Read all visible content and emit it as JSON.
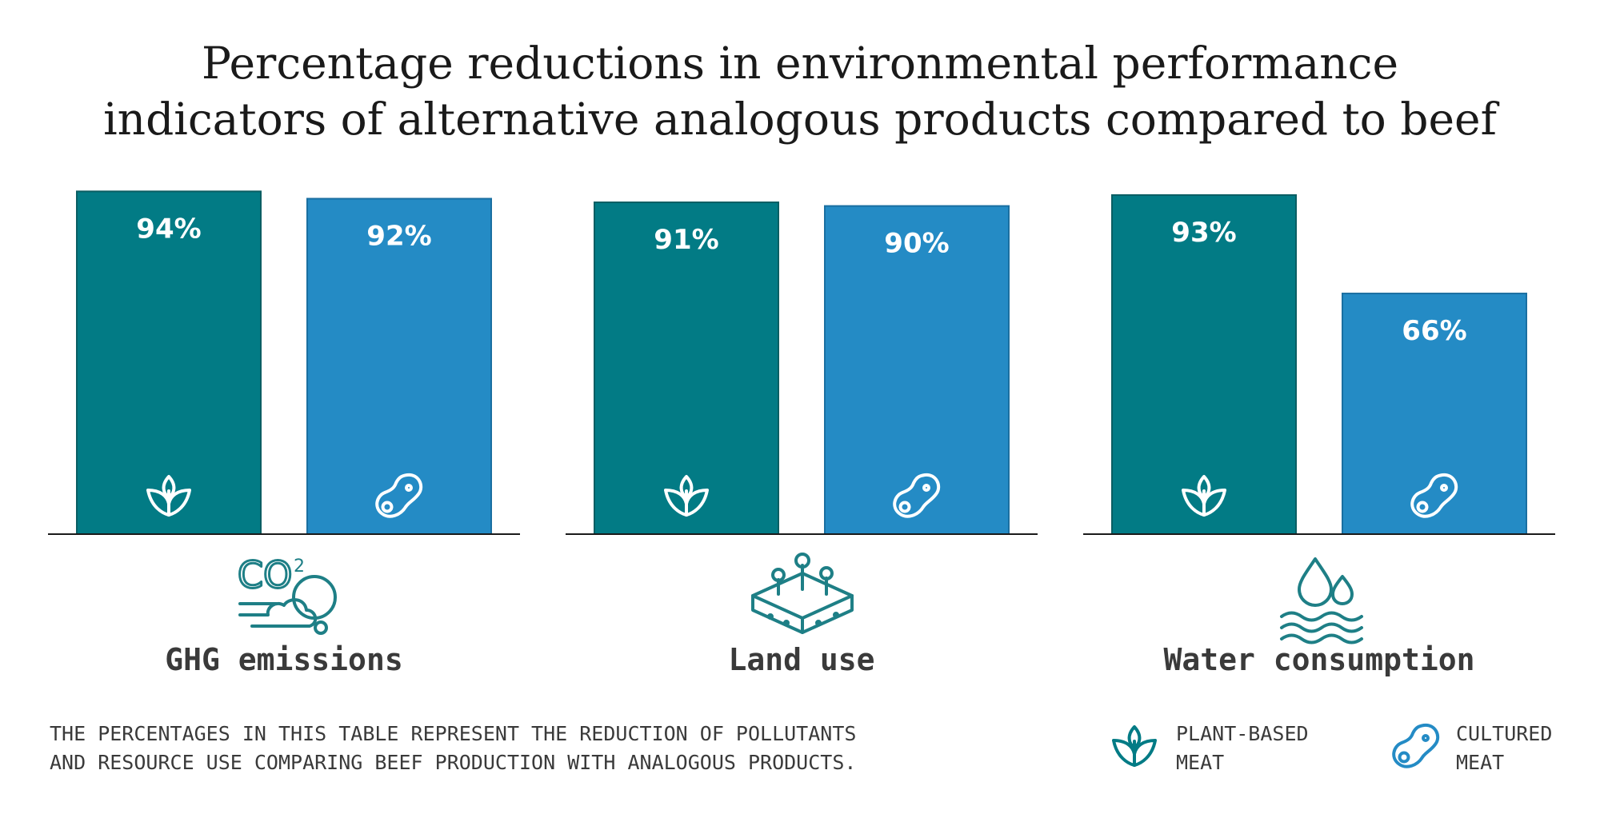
{
  "title_line1": "Percentage reductions in environmental performance",
  "title_line2": "indicators of alternative analogous products compared to beef",
  "colors": {
    "plant": "#027b85",
    "cultured": "#248bc5",
    "icon_teal": "#1e7f86"
  },
  "chart_data": {
    "type": "bar",
    "title": "Percentage reductions in environmental performance indicators of alternative analogous products compared to beef",
    "xlabel": "",
    "ylabel": "",
    "ylim": [
      0,
      100
    ],
    "grid": false,
    "legend": "bottom-right",
    "categories": [
      "GHG emissions",
      "Land use",
      "Water consumption"
    ],
    "category_icons": [
      "co2-cloud-icon",
      "land-plot-icon",
      "water-drops-icon"
    ],
    "series": [
      {
        "name": "PLANT-BASED MEAT",
        "icon": "sprout-icon",
        "values": [
          94,
          91,
          93
        ]
      },
      {
        "name": "CULTURED MEAT",
        "icon": "cultured-meat-icon",
        "values": [
          92,
          90,
          66
        ]
      }
    ],
    "value_suffix": "%"
  },
  "footnote_line1": "THE PERCENTAGES IN THIS TABLE REPRESENT THE REDUCTION OF POLLUTANTS",
  "footnote_line2": "AND RESOURCE USE COMPARING BEEF PRODUCTION WITH ANALOGOUS PRODUCTS.",
  "legend": {
    "plant_line1": "PLANT-BASED",
    "plant_line2": "MEAT",
    "cultured_line1": "CULTURED",
    "cultured_line2": "MEAT"
  }
}
